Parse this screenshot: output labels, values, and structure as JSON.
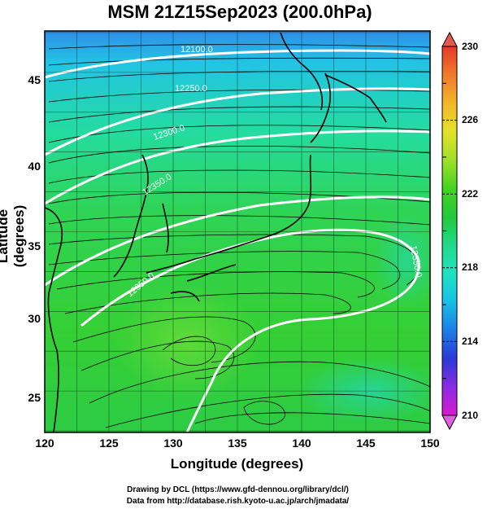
{
  "title": "MSM 21Z15Sep2023 (200.0hPa)",
  "map": {
    "xlabel": "Longitude (degrees)",
    "ylabel": "Latitude  (degrees)",
    "lon_range": [
      120,
      150
    ],
    "lat_range": [
      22.4,
      47.6
    ],
    "lon_ticks": [
      "120",
      "125",
      "130",
      "135",
      "140",
      "145",
      "150"
    ],
    "lat_ticks": [
      "25",
      "30",
      "35",
      "40",
      "45"
    ],
    "grid": true,
    "height_contours": [
      "12100.0",
      "12200.0",
      "12250.0",
      "12300.0",
      "12350.0"
    ],
    "field": "temperature (color) with streamlines and geopotential height contours"
  },
  "colorbar": {
    "min": 210,
    "max": 230,
    "ticks": [
      "230",
      "226",
      "222",
      "218",
      "214",
      "210"
    ],
    "colors": [
      "#d81bd0",
      "#8a2be2",
      "#2a3bd6",
      "#1a7fe8",
      "#19bfe6",
      "#1fe3c0",
      "#22d98a",
      "#22c93a",
      "#44d420",
      "#9fe02a",
      "#e4e22a",
      "#f3b62a",
      "#f07a2a",
      "#e23a2a"
    ]
  },
  "credits": {
    "line1": "Drawing by DCL (https://www.gfd-dennou.org/library/dcl/)",
    "line2": "Data from http://database.rish.kyoto-u.ac.jp/arch/jmadata/"
  }
}
